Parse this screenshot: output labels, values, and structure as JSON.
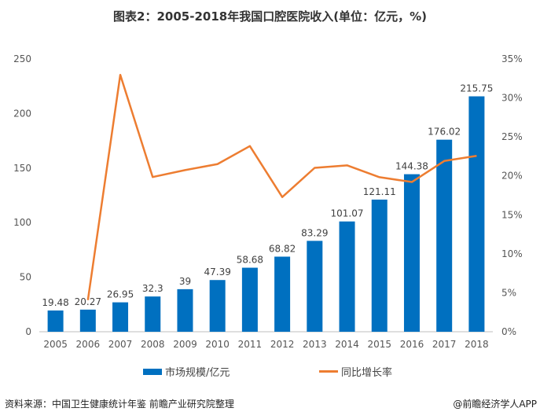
{
  "title": "图表2：2005-2018年我国口腔医院收入(单位：亿元，%)",
  "chart_data": {
    "type": "bar+line",
    "title": "图表2：2005-2018年我国口腔医院收入(单位：亿元，%)",
    "categories": [
      "2005",
      "2006",
      "2007",
      "2008",
      "2009",
      "2010",
      "2011",
      "2012",
      "2013",
      "2014",
      "2015",
      "2016",
      "2017",
      "2018"
    ],
    "series": [
      {
        "name": "市场规模/亿元",
        "type": "bar",
        "axis": "left",
        "color": "#0070c0",
        "values": [
          19.48,
          20.27,
          26.95,
          32.3,
          39,
          47.39,
          58.68,
          68.82,
          83.29,
          101.07,
          121.11,
          144.38,
          176.02,
          215.75
        ],
        "labels": [
          "19.48",
          "20.27",
          "26.95",
          "32.3",
          "39",
          "47.39",
          "58.68",
          "68.82",
          "83.29",
          "101.07",
          "121.11",
          "144.38",
          "176.02",
          "215.75"
        ]
      },
      {
        "name": "同比增长率",
        "type": "line",
        "axis": "right",
        "color": "#ed7d31",
        "values": [
          null,
          4.06,
          32.96,
          19.85,
          20.74,
          21.51,
          23.82,
          17.28,
          21.03,
          21.35,
          19.83,
          19.21,
          21.91,
          22.57
        ]
      }
    ],
    "left_axis": {
      "ylim": [
        0,
        250
      ],
      "ticks": [
        "0",
        "50",
        "100",
        "150",
        "200",
        "250"
      ]
    },
    "right_axis": {
      "ylim": [
        0,
        35
      ],
      "ticks": [
        "0%",
        "5%",
        "10%",
        "15%",
        "20%",
        "25%",
        "30%",
        "35%"
      ]
    },
    "grid": false,
    "legend": "bottom"
  },
  "source": "资料来源：中国卫生健康统计年鉴 前瞻产业研究院整理",
  "credit": "@前瞻经济学人APP"
}
